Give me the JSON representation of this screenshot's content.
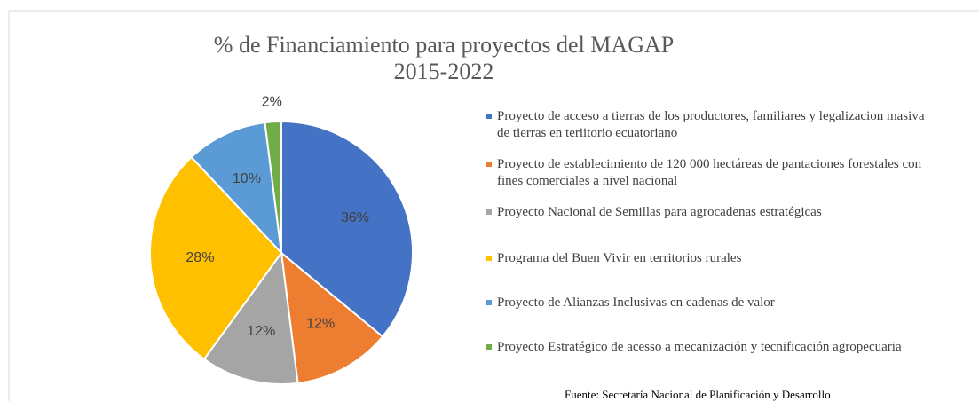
{
  "chart_data": {
    "type": "pie",
    "title": "% de Financiamiento para proyectos del MAGAP",
    "subtitle": "2015-2022",
    "categories": [
      "Proyecto de acceso a tierras de los productores, familiares y legalizacion masiva de tierras en teriitorio ecuatoriano",
      "Proyecto de establecimiento de 120 000 hectáreas de pantaciones forestales con fines comerciales a nivel nacional",
      "Proyecto Nacional de Semillas para agrocadenas estratégicas",
      "Programa del Buen Vivir en territorios rurales",
      "Proyecto de Alianzas Inclusivas en cadenas de valor",
      "Proyecto Estratégico de acesso a mecanización y tecnificación agropecuaria"
    ],
    "values": [
      36,
      12,
      12,
      28,
      10,
      2
    ],
    "value_labels": [
      "36%",
      "12%",
      "12%",
      "28%",
      "10%",
      "2%"
    ],
    "colors": [
      "#4472c4",
      "#ed7d31",
      "#a5a5a5",
      "#ffc000",
      "#5b9bd5",
      "#70ad47"
    ],
    "legend": "right",
    "source": "Fuente: Secretaría Nacional de Planificación y Desarrollo"
  }
}
